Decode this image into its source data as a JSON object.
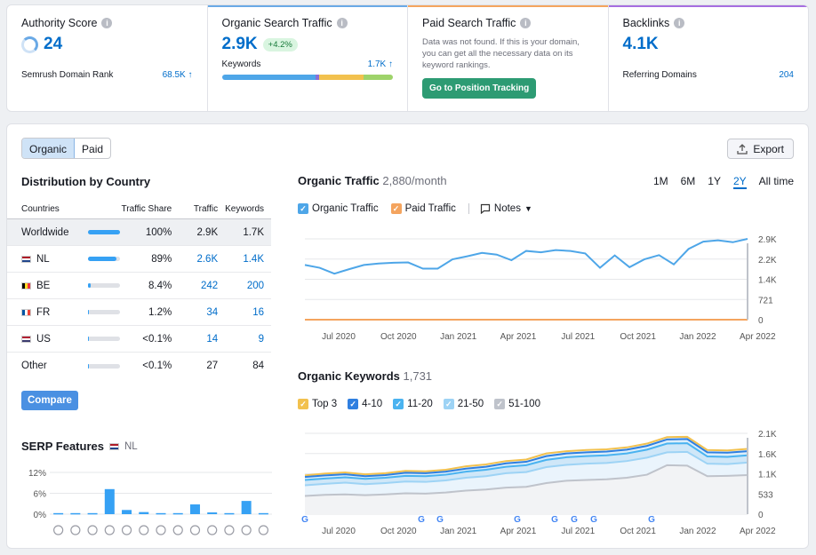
{
  "cards": {
    "authority": {
      "title": "Authority Score",
      "value": "24",
      "sub_label": "Semrush Domain Rank",
      "sub_value": "68.5K ↑"
    },
    "organic": {
      "title": "Organic Search Traffic",
      "value": "2.9K",
      "badge": "+4.2%",
      "sub_label": "Keywords",
      "sub_value": "1.7K ↑"
    },
    "paid": {
      "title": "Paid Search Traffic",
      "message": "Data was not found. If this is your domain, you can get all the necessary data on its keyword rankings.",
      "button": "Go to Position Tracking"
    },
    "backlinks": {
      "title": "Backlinks",
      "value": "4.1K",
      "sub_label": "Referring Domains",
      "sub_value": "204"
    }
  },
  "tabs": {
    "organic": "Organic",
    "paid": "Paid"
  },
  "export_label": "Export",
  "distribution": {
    "title": "Distribution by Country",
    "headers": {
      "country": "Countries",
      "share": "Traffic Share",
      "traffic": "Traffic",
      "keywords": "Keywords"
    },
    "rows": [
      {
        "name": "Worldwide",
        "share": "100%",
        "share_frac": 1.0,
        "traffic": "2.9K",
        "keywords": "1.7K"
      },
      {
        "name": "NL",
        "share": "89%",
        "share_frac": 0.89,
        "traffic": "2.6K",
        "keywords": "1.4K"
      },
      {
        "name": "BE",
        "share": "8.4%",
        "share_frac": 0.084,
        "traffic": "242",
        "keywords": "200"
      },
      {
        "name": "FR",
        "share": "1.2%",
        "share_frac": 0.012,
        "traffic": "34",
        "keywords": "16"
      },
      {
        "name": "US",
        "share": "<0.1%",
        "share_frac": 0.001,
        "traffic": "14",
        "keywords": "9"
      },
      {
        "name": "Other",
        "share": "<0.1%",
        "share_frac": 0.001,
        "traffic": "27",
        "keywords": "84"
      }
    ],
    "compare": "Compare"
  },
  "serp": {
    "title": "SERP Features",
    "country": "NL",
    "yticks": [
      "12%",
      "6%",
      "0%"
    ],
    "values": [
      0.3,
      0.3,
      0.3,
      7.2,
      1.2,
      0.6,
      0.3,
      0.3,
      2.8,
      0.5,
      0.3,
      3.8,
      0.3
    ]
  },
  "organic_traffic": {
    "title": "Organic Traffic",
    "value": "2,880/month",
    "periods": [
      "1M",
      "6M",
      "1Y",
      "2Y",
      "All time"
    ],
    "active_period": "2Y",
    "legend": {
      "organic": "Organic Traffic",
      "paid": "Paid Traffic",
      "notes": "Notes"
    }
  },
  "organic_keywords": {
    "title": "Organic Keywords",
    "value": "1,731",
    "legend": [
      "Top 3",
      "4-10",
      "11-20",
      "21-50",
      "51-100"
    ]
  },
  "chart_data": [
    {
      "type": "line",
      "title": "Organic Traffic",
      "x_ticks": [
        "Jul 2020",
        "Oct 2020",
        "Jan 2021",
        "Apr 2021",
        "Jul 2021",
        "Oct 2021",
        "Jan 2022",
        "Apr 2022"
      ],
      "y_ticks": [
        "0",
        "721",
        "1.4K",
        "2.2K",
        "2.9K"
      ],
      "ylim": [
        0,
        2880
      ],
      "series": [
        {
          "name": "Organic Traffic",
          "color": "#4ea6e8",
          "values": [
            1950,
            1850,
            1640,
            1800,
            1950,
            2000,
            2030,
            2040,
            1820,
            1820,
            2150,
            2260,
            2380,
            2320,
            2120,
            2450,
            2400,
            2480,
            2450,
            2360,
            1850,
            2290,
            1870,
            2150,
            2300,
            1970,
            2520,
            2780,
            2830,
            2760,
            2880
          ]
        },
        {
          "name": "Paid Traffic",
          "color": "#f4a45e",
          "values": [
            0,
            0,
            0,
            0,
            0,
            0,
            0,
            0,
            0,
            0,
            0,
            0,
            0,
            0,
            0,
            0,
            0,
            0,
            0,
            0,
            0,
            0,
            0,
            0,
            0,
            0,
            0,
            0,
            0,
            0,
            0
          ]
        }
      ]
    },
    {
      "type": "area",
      "title": "Organic Keywords",
      "x_ticks": [
        "Jul 2020",
        "Oct 2020",
        "Jan 2021",
        "Apr 2021",
        "Jul 2021",
        "Oct 2021",
        "Jan 2022",
        "Apr 2022"
      ],
      "y_ticks": [
        "0",
        "533",
        "1.1K",
        "1.6K",
        "2.1K"
      ],
      "ylim": [
        0,
        2130
      ],
      "series": [
        {
          "name": "Top 3",
          "color": "#f2c14e",
          "values": [
            1020,
            1070,
            1100,
            1050,
            1080,
            1140,
            1130,
            1170,
            1260,
            1310,
            1400,
            1440,
            1600,
            1660,
            1690,
            1710,
            1760,
            1860,
            2030,
            2040,
            1690,
            1680,
            1720
          ]
        },
        {
          "name": "4-10",
          "color": "#2f7fe0",
          "values": [
            980,
            1020,
            1050,
            1000,
            1030,
            1090,
            1080,
            1120,
            1200,
            1250,
            1340,
            1380,
            1530,
            1600,
            1630,
            1650,
            1700,
            1800,
            1970,
            1980,
            1630,
            1620,
            1660
          ]
        },
        {
          "name": "11-20",
          "color": "#4ab3f0",
          "values": [
            900,
            940,
            970,
            930,
            960,
            1010,
            1000,
            1040,
            1120,
            1170,
            1250,
            1290,
            1430,
            1500,
            1530,
            1550,
            1600,
            1700,
            1860,
            1870,
            1520,
            1510,
            1550
          ]
        },
        {
          "name": "21-50",
          "color": "#9dd3f5",
          "values": [
            760,
            800,
            830,
            790,
            820,
            860,
            850,
            890,
            960,
            1000,
            1080,
            1110,
            1240,
            1300,
            1330,
            1350,
            1400,
            1490,
            1630,
            1640,
            1330,
            1320,
            1360
          ]
        },
        {
          "name": "51-100",
          "color": "#bfc3cb",
          "values": [
            480,
            510,
            520,
            500,
            520,
            550,
            540,
            570,
            620,
            650,
            700,
            720,
            820,
            880,
            900,
            920,
            960,
            1040,
            1290,
            1280,
            1000,
            1010,
            1030
          ]
        }
      ]
    }
  ],
  "colors": {
    "accent": "#006dca",
    "green": "#2d9b73",
    "bar": "#36a1f4"
  }
}
